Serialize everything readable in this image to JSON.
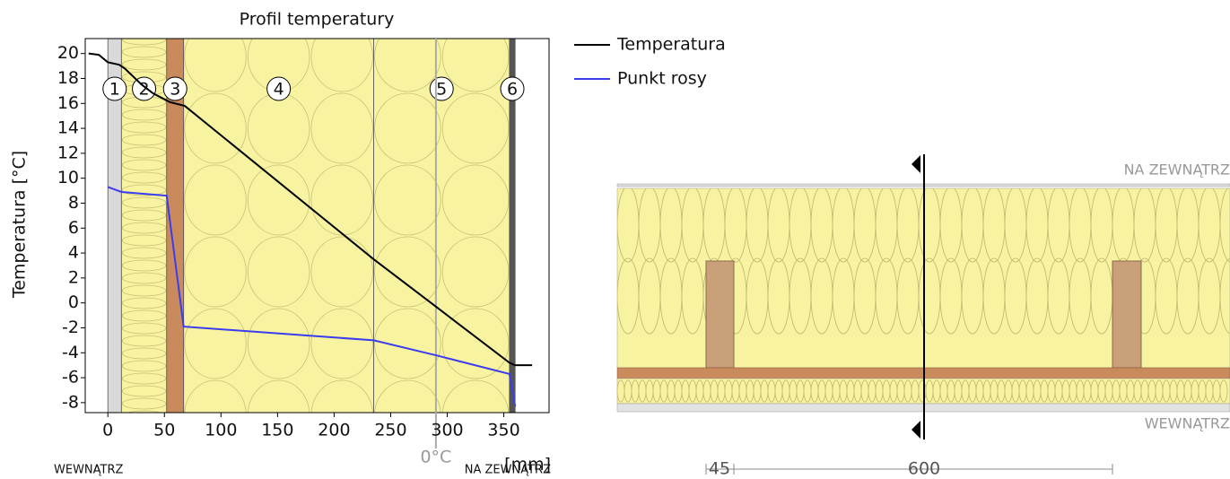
{
  "chart_data": {
    "type": "line",
    "title": "Profil temperatury",
    "x_label": "[mm]",
    "y_label": "Temperatura  [°C]",
    "xlim": [
      -20,
      390
    ],
    "ylim": [
      -8.8,
      21.2
    ],
    "xticks": [
      0,
      50,
      100,
      150,
      200,
      250,
      300,
      350
    ],
    "yticks": [
      -8,
      -6,
      -4,
      -2,
      0,
      2,
      4,
      6,
      8,
      10,
      12,
      14,
      16,
      18,
      20
    ],
    "layers": [
      {
        "label": "1",
        "start": 0,
        "end": 12,
        "color": "#d9d9d9"
      },
      {
        "label": "2",
        "start": 12,
        "end": 52,
        "color": "#f7f3a0"
      },
      {
        "label": "3",
        "start": 52,
        "end": 67,
        "color": "#c98a5c"
      },
      {
        "label": "4",
        "start": 67,
        "end": 235,
        "color": "#f7f3a0"
      },
      {
        "label": "5",
        "start": 235,
        "end": 355,
        "color": "#f7f3a0"
      },
      {
        "label": "6",
        "start": 355,
        "end": 360,
        "color": "#555555"
      }
    ],
    "annotation": {
      "x": 290,
      "text": "0°C"
    },
    "inside_label": "WEWNĄTRZ",
    "outside_label": "NA ZEWNĄTRZ",
    "series": [
      {
        "name": "Temperatura",
        "color": "#000000",
        "x": [
          -17,
          -8,
          0,
          10,
          15,
          30,
          40,
          55,
          68,
          235,
          290,
          355,
          360,
          375
        ],
        "values": [
          20,
          19.9,
          19.3,
          19.1,
          18.8,
          17.5,
          16.8,
          16.1,
          15.8,
          3.5,
          -0.3,
          -4.8,
          -5,
          -5
        ]
      },
      {
        "name": "Punkt rosy",
        "color": "#3b3bf0",
        "x": [
          0,
          12,
          52,
          67,
          235,
          290,
          355,
          360
        ],
        "values": [
          9.3,
          8.9,
          8.6,
          -1.9,
          -3,
          -4.2,
          -5.7,
          -8.3
        ]
      }
    ]
  },
  "section": {
    "outside_label": "NA ZEWNĄTRZ",
    "inside_label": "WEWNĄTRZ",
    "dimensions": [
      "45",
      "600"
    ]
  }
}
